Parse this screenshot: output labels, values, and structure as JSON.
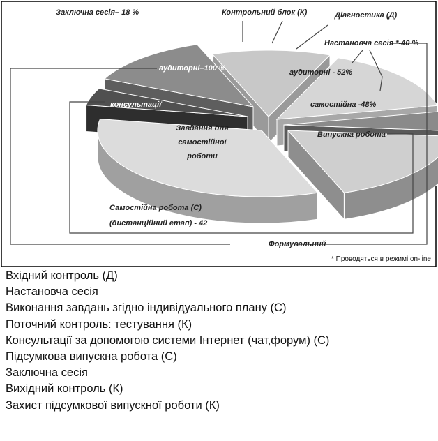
{
  "figure": {
    "labels": {
      "final_session": "Заключна сесія– 18 %",
      "control_block": "Контрольний блок (К)",
      "diagnostics": "Діагностика (Д)",
      "setup_session": "Настановча сесія *-40 %",
      "classroom_100": "аудиторні–100 %",
      "classroom_52": "аудиторні - 52%",
      "consultations": "консультації",
      "independent_48": "самостійна -48%",
      "tasks": [
        "Завдання для",
        "самостійної",
        "роботи"
      ],
      "final_work": "Випускна робота",
      "self_work": [
        "Самостійна робота  (С)",
        "(дистанційний етап) - 42"
      ],
      "formative": "Формувальний"
    },
    "note": "* Проводяться в режимі on-line"
  },
  "list": [
    "Вхідний контроль (Д)",
    "Настановча сесія",
    "Виконання завдань згідно індивідуального плану (С)",
    "Поточний контроль: тестування (К)",
    "Консультації за допомогою системи Інтернет (чат,форум) (С)",
    "Підсумкова випускна робота (С)",
    "Заключна сесія",
    "Вихідний контроль (К)",
    "Захист підсумкової випускної роботи (К)"
  ]
}
